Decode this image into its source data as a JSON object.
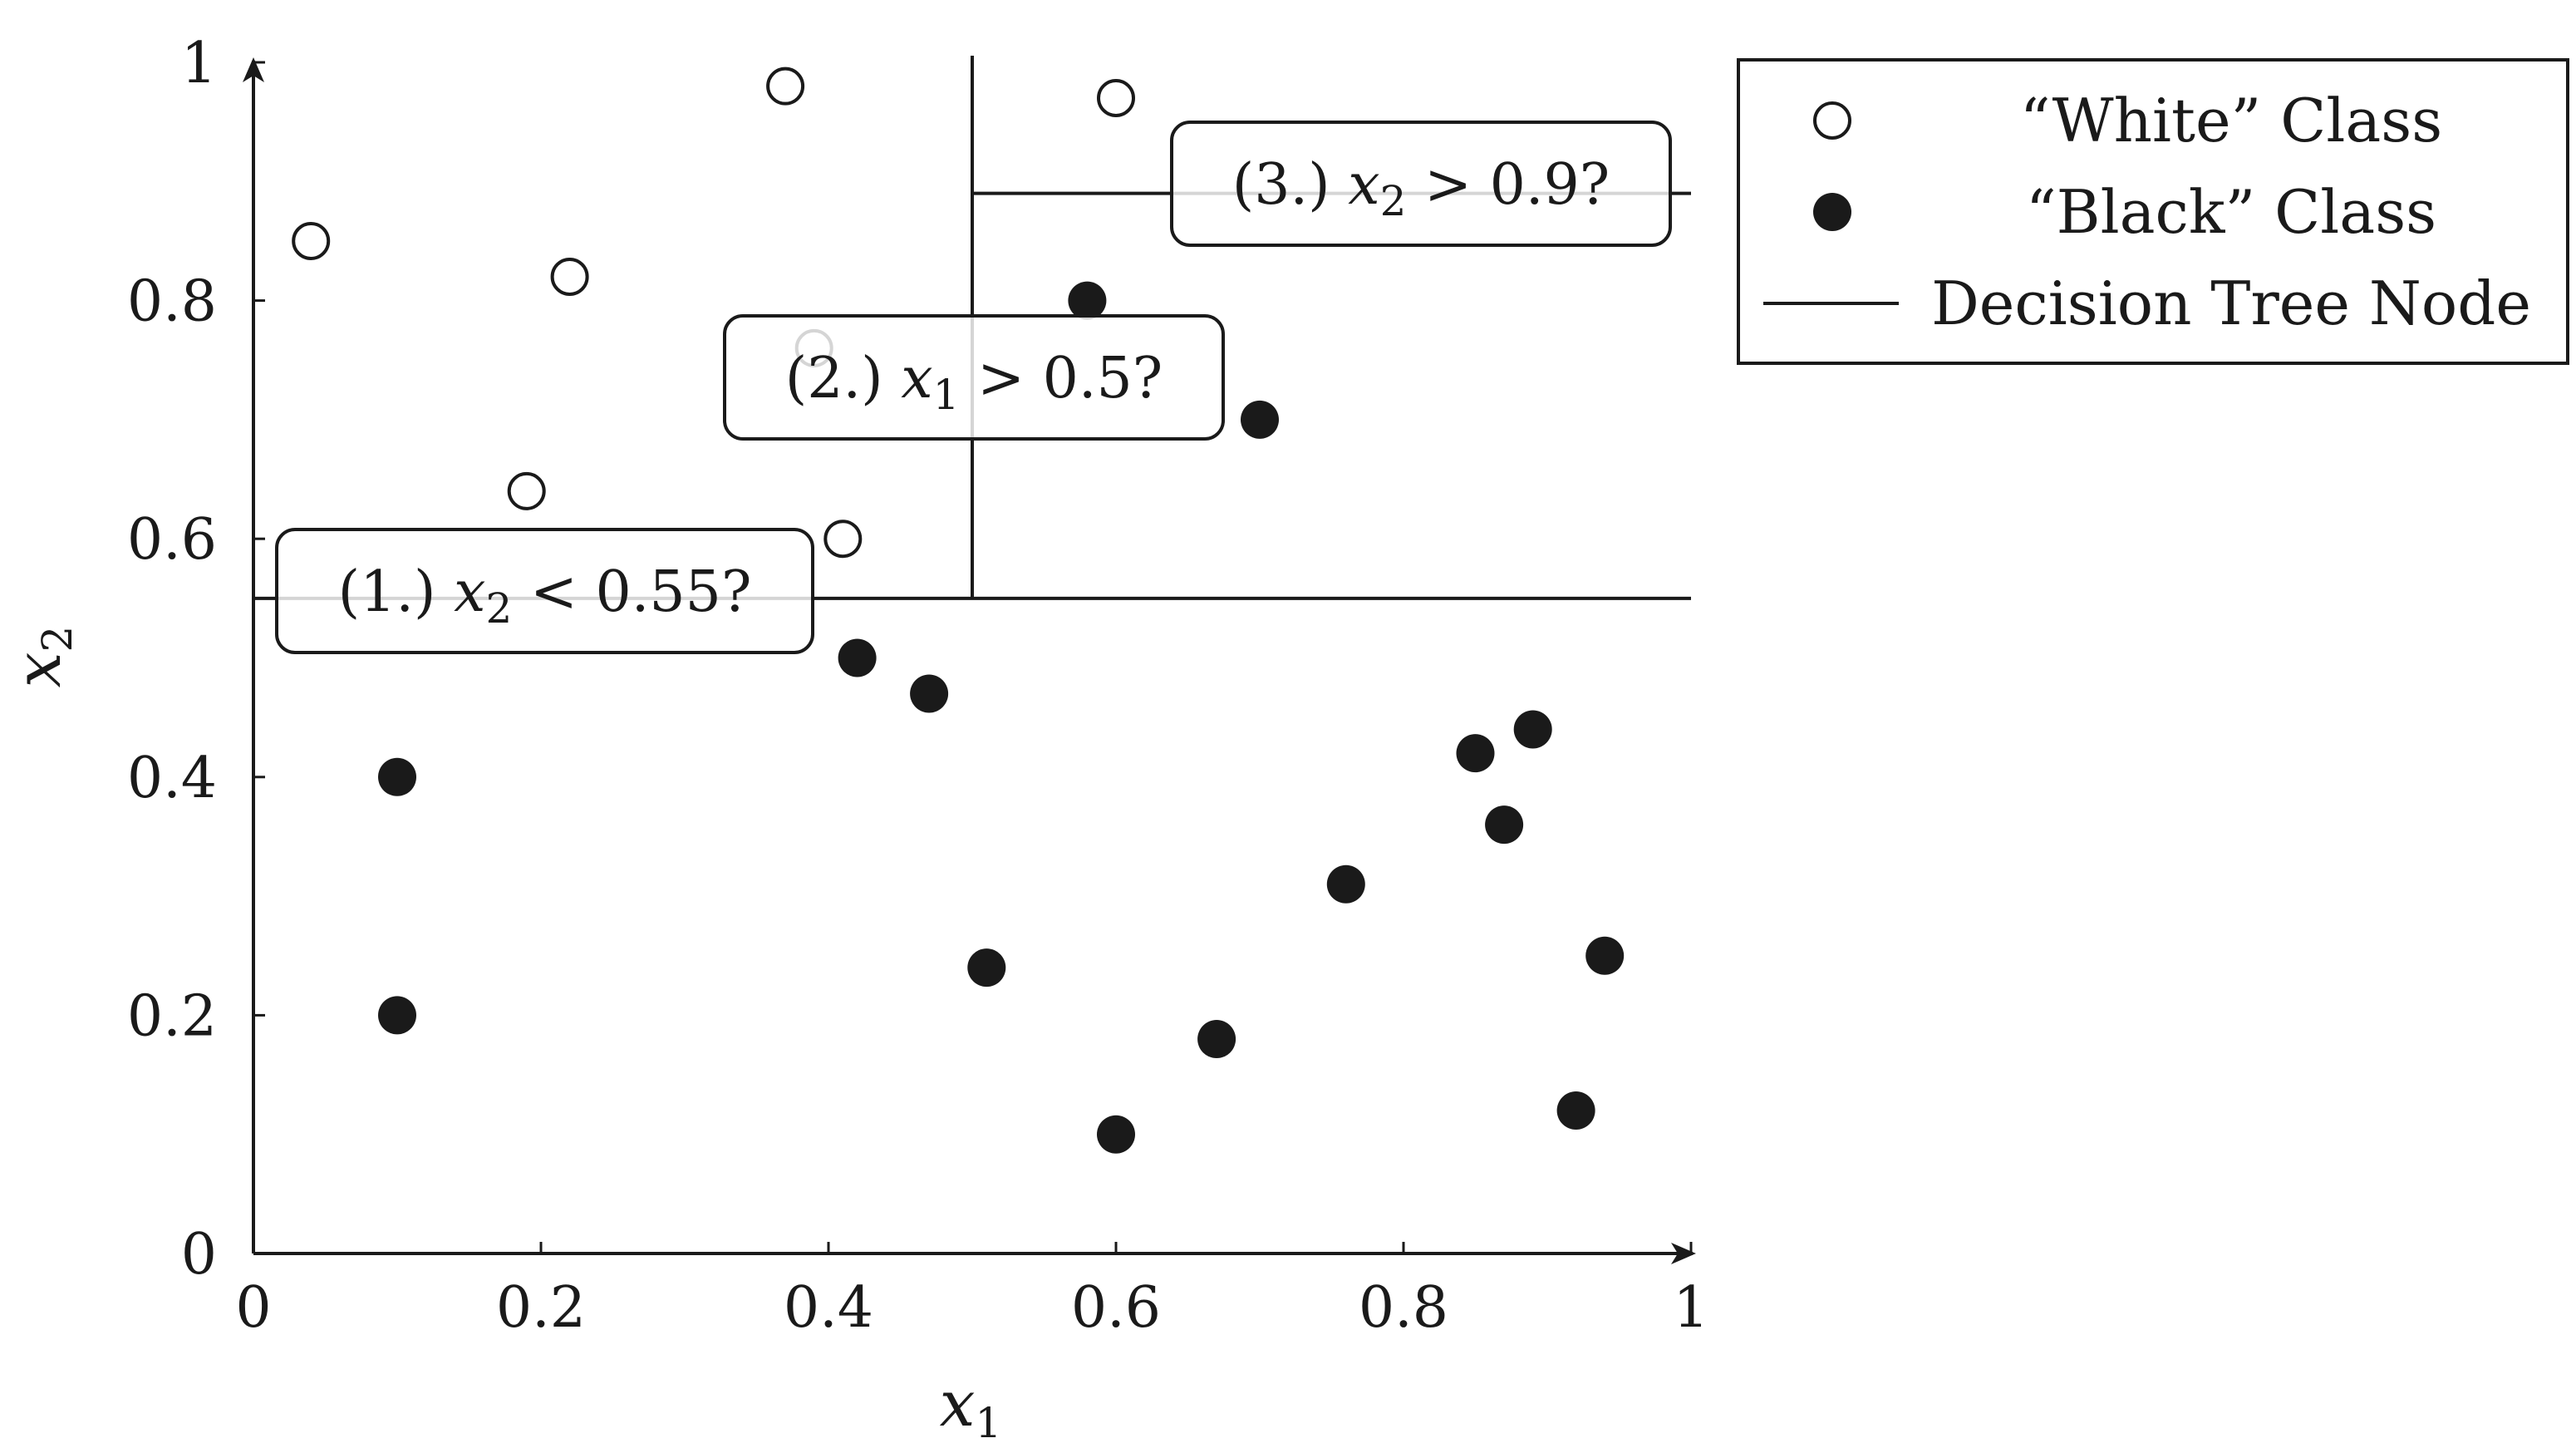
{
  "chart_data": {
    "type": "scatter",
    "title": "",
    "xlabel": "x",
    "xlabel_sub": "1",
    "ylabel": "x",
    "ylabel_sub": "2",
    "xlim": [
      0,
      1
    ],
    "ylim": [
      0,
      1
    ],
    "x_ticks": [
      0,
      0.2,
      0.4,
      0.6,
      0.8,
      1
    ],
    "x_tick_labels": [
      "0",
      "0.2",
      "0.4",
      "0.6",
      "0.8",
      "1"
    ],
    "y_ticks": [
      0,
      0.2,
      0.4,
      0.6,
      0.8,
      1
    ],
    "y_tick_labels": [
      "0",
      "0.2",
      "0.4",
      "0.6",
      "0.8",
      "1"
    ],
    "grid": false,
    "legend_position": "outside-top-right",
    "series": [
      {
        "name": "“White” Class",
        "marker": "open-circle",
        "points": [
          {
            "x": 0.04,
            "y": 0.85
          },
          {
            "x": 0.22,
            "y": 0.82
          },
          {
            "x": 0.37,
            "y": 0.98
          },
          {
            "x": 0.39,
            "y": 0.76
          },
          {
            "x": 0.19,
            "y": 0.64
          },
          {
            "x": 0.41,
            "y": 0.6
          },
          {
            "x": 0.6,
            "y": 0.97
          }
        ]
      },
      {
        "name": "“Black” Class",
        "marker": "filled-circle",
        "points": [
          {
            "x": 0.58,
            "y": 0.8
          },
          {
            "x": 0.7,
            "y": 0.7
          },
          {
            "x": 0.42,
            "y": 0.5
          },
          {
            "x": 0.47,
            "y": 0.47
          },
          {
            "x": 0.1,
            "y": 0.4
          },
          {
            "x": 0.1,
            "y": 0.2
          },
          {
            "x": 0.85,
            "y": 0.42
          },
          {
            "x": 0.89,
            "y": 0.44
          },
          {
            "x": 0.87,
            "y": 0.36
          },
          {
            "x": 0.76,
            "y": 0.31
          },
          {
            "x": 0.51,
            "y": 0.24
          },
          {
            "x": 0.94,
            "y": 0.25
          },
          {
            "x": 0.67,
            "y": 0.18
          },
          {
            "x": 0.6,
            "y": 0.1
          },
          {
            "x": 0.92,
            "y": 0.12
          }
        ]
      }
    ],
    "decision_nodes_legend": "Decision Tree Node",
    "decision_nodes": [
      {
        "label_num": "(1.)",
        "var": "x",
        "sub": "2",
        "op": "<",
        "value": "0.55?",
        "orientation": "horizontal",
        "at": 0.55,
        "from": 0,
        "to": 1
      },
      {
        "label_num": "(2.)",
        "var": "x",
        "sub": "1",
        "op": ">",
        "value": "0.5?",
        "orientation": "vertical",
        "at": 0.5,
        "from": 0.55,
        "to": 1
      },
      {
        "label_num": "(3.)",
        "var": "x",
        "sub": "2",
        "op": ">",
        "value": "0.9?",
        "orientation": "horizontal",
        "at": 0.89,
        "from": 0.5,
        "to": 1
      }
    ],
    "colors": {
      "ink": "#1a1a1a",
      "background": "#ffffff"
    }
  }
}
